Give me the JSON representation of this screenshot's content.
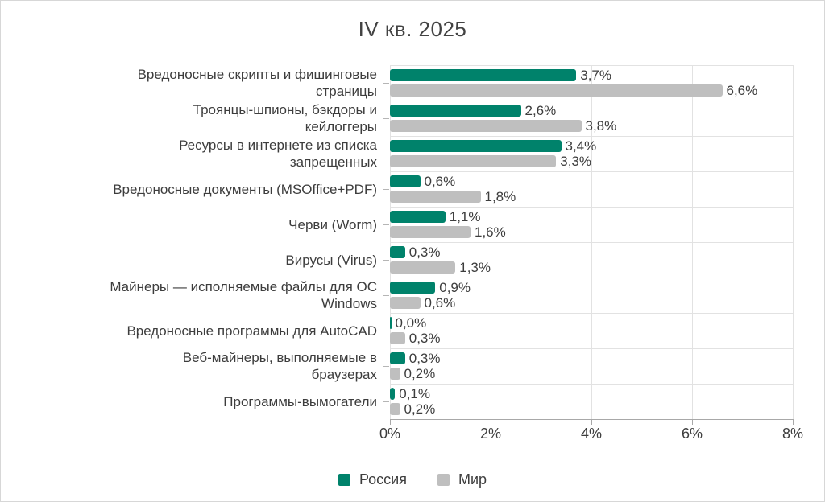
{
  "title": "IV кв. 2025",
  "colors": {
    "russia": "#00826B",
    "world": "#BFBFBF",
    "text": "#3d3d3d",
    "grid": "#e2e2e2",
    "axis": "#a8a8a8"
  },
  "chart_data": {
    "type": "bar",
    "orientation": "horizontal",
    "title": "IV кв. 2025",
    "categories": [
      "Вредоносные скрипты и фишинговые\nстраницы",
      "Троянцы-шпионы, бэкдоры и\nкейлоггеры",
      "Ресурсы в интернете из списка\nзапрещенных",
      "Вредоносные документы (MSOffice+PDF)",
      "Черви (Worm)",
      "Вирусы (Virus)",
      "Майнеры — исполняемые файлы для ОС\nWindows",
      "Вредоносные программы для AutoCAD",
      "Веб-майнеры, выполняемые в\nбраузерах",
      "Программы-вымогатели"
    ],
    "series": [
      {
        "key": "russia",
        "name": "Россия",
        "color": "#00826B",
        "values": [
          3.7,
          2.6,
          3.4,
          0.6,
          1.1,
          0.3,
          0.9,
          0.0,
          0.3,
          0.1
        ],
        "labels": [
          "3,7%",
          "2,6%",
          "3,4%",
          "0,6%",
          "1,1%",
          "0,3%",
          "0,9%",
          "0,0%",
          "0,3%",
          "0,1%"
        ]
      },
      {
        "key": "world",
        "name": "Мир",
        "color": "#BFBFBF",
        "values": [
          6.6,
          3.8,
          3.3,
          1.8,
          1.6,
          1.3,
          0.6,
          0.3,
          0.2,
          0.2
        ],
        "labels": [
          "6,6%",
          "3,8%",
          "3,3%",
          "1,8%",
          "1,6%",
          "1,3%",
          "0,6%",
          "0,3%",
          "0,2%",
          "0,2%"
        ]
      }
    ],
    "x_ticks": [
      "0%",
      "2%",
      "4%",
      "6%",
      "8%"
    ],
    "xlim": [
      0,
      8
    ],
    "grid": true,
    "legend_position": "bottom"
  }
}
